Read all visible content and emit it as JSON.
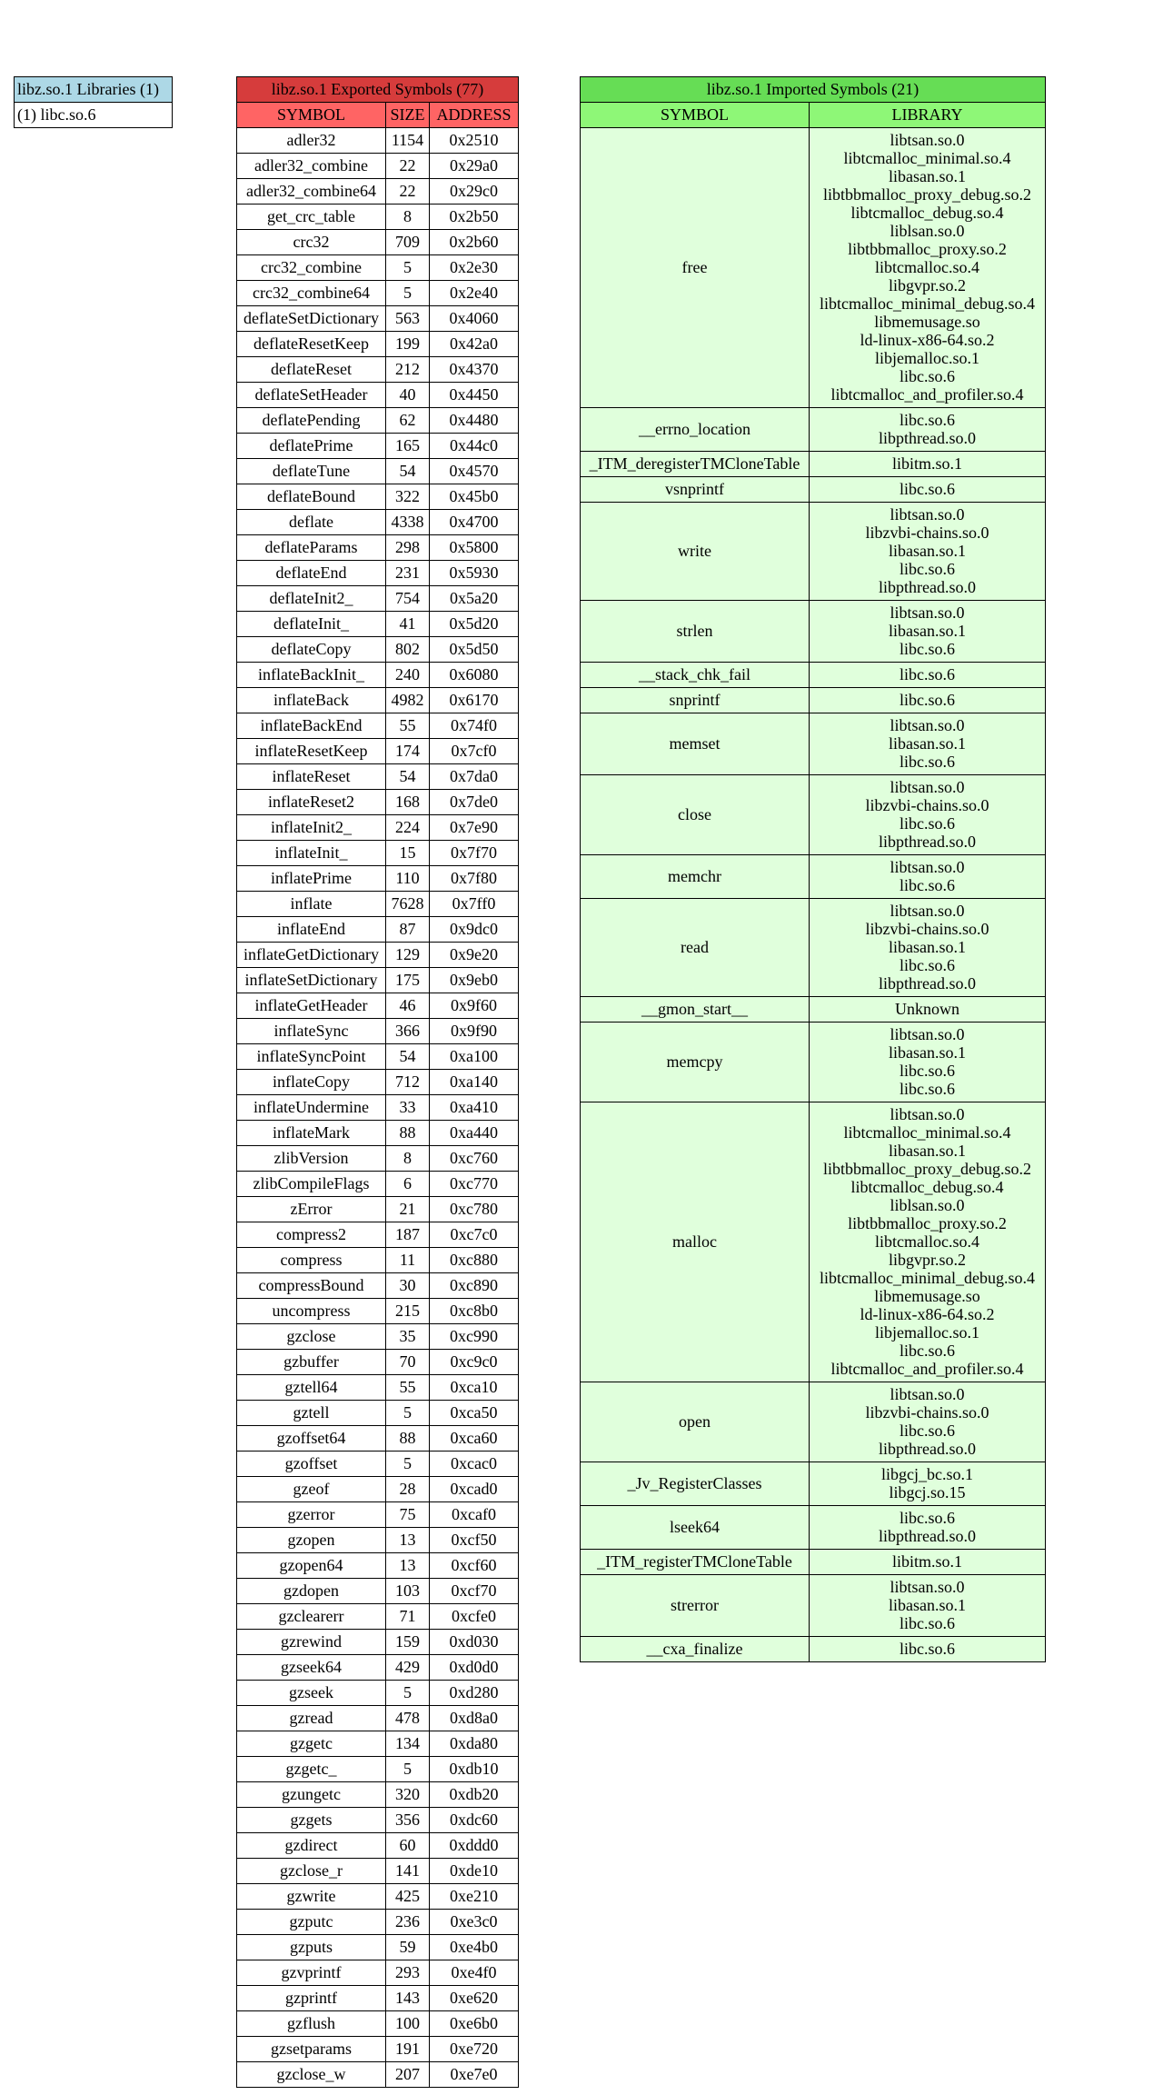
{
  "libraries": {
    "title": "libz.so.1 Libraries (1)",
    "items": [
      "(1) libc.so.6"
    ],
    "color": "#add8e6"
  },
  "exported": {
    "title": "libz.so.1 Exported Symbols (77)",
    "columns": [
      "SYMBOL",
      "SIZE",
      "ADDRESS"
    ],
    "title_color": "#d63c3c",
    "header_color": "#ff6464",
    "rows": [
      [
        "adler32",
        "1154",
        "0x2510"
      ],
      [
        "adler32_combine",
        "22",
        "0x29a0"
      ],
      [
        "adler32_combine64",
        "22",
        "0x29c0"
      ],
      [
        "get_crc_table",
        "8",
        "0x2b50"
      ],
      [
        "crc32",
        "709",
        "0x2b60"
      ],
      [
        "crc32_combine",
        "5",
        "0x2e30"
      ],
      [
        "crc32_combine64",
        "5",
        "0x2e40"
      ],
      [
        "deflateSetDictionary",
        "563",
        "0x4060"
      ],
      [
        "deflateResetKeep",
        "199",
        "0x42a0"
      ],
      [
        "deflateReset",
        "212",
        "0x4370"
      ],
      [
        "deflateSetHeader",
        "40",
        "0x4450"
      ],
      [
        "deflatePending",
        "62",
        "0x4480"
      ],
      [
        "deflatePrime",
        "165",
        "0x44c0"
      ],
      [
        "deflateTune",
        "54",
        "0x4570"
      ],
      [
        "deflateBound",
        "322",
        "0x45b0"
      ],
      [
        "deflate",
        "4338",
        "0x4700"
      ],
      [
        "deflateParams",
        "298",
        "0x5800"
      ],
      [
        "deflateEnd",
        "231",
        "0x5930"
      ],
      [
        "deflateInit2_",
        "754",
        "0x5a20"
      ],
      [
        "deflateInit_",
        "41",
        "0x5d20"
      ],
      [
        "deflateCopy",
        "802",
        "0x5d50"
      ],
      [
        "inflateBackInit_",
        "240",
        "0x6080"
      ],
      [
        "inflateBack",
        "4982",
        "0x6170"
      ],
      [
        "inflateBackEnd",
        "55",
        "0x74f0"
      ],
      [
        "inflateResetKeep",
        "174",
        "0x7cf0"
      ],
      [
        "inflateReset",
        "54",
        "0x7da0"
      ],
      [
        "inflateReset2",
        "168",
        "0x7de0"
      ],
      [
        "inflateInit2_",
        "224",
        "0x7e90"
      ],
      [
        "inflateInit_",
        "15",
        "0x7f70"
      ],
      [
        "inflatePrime",
        "110",
        "0x7f80"
      ],
      [
        "inflate",
        "7628",
        "0x7ff0"
      ],
      [
        "inflateEnd",
        "87",
        "0x9dc0"
      ],
      [
        "inflateGetDictionary",
        "129",
        "0x9e20"
      ],
      [
        "inflateSetDictionary",
        "175",
        "0x9eb0"
      ],
      [
        "inflateGetHeader",
        "46",
        "0x9f60"
      ],
      [
        "inflateSync",
        "366",
        "0x9f90"
      ],
      [
        "inflateSyncPoint",
        "54",
        "0xa100"
      ],
      [
        "inflateCopy",
        "712",
        "0xa140"
      ],
      [
        "inflateUndermine",
        "33",
        "0xa410"
      ],
      [
        "inflateMark",
        "88",
        "0xa440"
      ],
      [
        "zlibVersion",
        "8",
        "0xc760"
      ],
      [
        "zlibCompileFlags",
        "6",
        "0xc770"
      ],
      [
        "zError",
        "21",
        "0xc780"
      ],
      [
        "compress2",
        "187",
        "0xc7c0"
      ],
      [
        "compress",
        "11",
        "0xc880"
      ],
      [
        "compressBound",
        "30",
        "0xc890"
      ],
      [
        "uncompress",
        "215",
        "0xc8b0"
      ],
      [
        "gzclose",
        "35",
        "0xc990"
      ],
      [
        "gzbuffer",
        "70",
        "0xc9c0"
      ],
      [
        "gztell64",
        "55",
        "0xca10"
      ],
      [
        "gztell",
        "5",
        "0xca50"
      ],
      [
        "gzoffset64",
        "88",
        "0xca60"
      ],
      [
        "gzoffset",
        "5",
        "0xcac0"
      ],
      [
        "gzeof",
        "28",
        "0xcad0"
      ],
      [
        "gzerror",
        "75",
        "0xcaf0"
      ],
      [
        "gzopen",
        "13",
        "0xcf50"
      ],
      [
        "gzopen64",
        "13",
        "0xcf60"
      ],
      [
        "gzdopen",
        "103",
        "0xcf70"
      ],
      [
        "gzclearerr",
        "71",
        "0xcfe0"
      ],
      [
        "gzrewind",
        "159",
        "0xd030"
      ],
      [
        "gzseek64",
        "429",
        "0xd0d0"
      ],
      [
        "gzseek",
        "5",
        "0xd280"
      ],
      [
        "gzread",
        "478",
        "0xd8a0"
      ],
      [
        "gzgetc",
        "134",
        "0xda80"
      ],
      [
        "gzgetc_",
        "5",
        "0xdb10"
      ],
      [
        "gzungetc",
        "320",
        "0xdb20"
      ],
      [
        "gzgets",
        "356",
        "0xdc60"
      ],
      [
        "gzdirect",
        "60",
        "0xddd0"
      ],
      [
        "gzclose_r",
        "141",
        "0xde10"
      ],
      [
        "gzwrite",
        "425",
        "0xe210"
      ],
      [
        "gzputc",
        "236",
        "0xe3c0"
      ],
      [
        "gzputs",
        "59",
        "0xe4b0"
      ],
      [
        "gzvprintf",
        "293",
        "0xe4f0"
      ],
      [
        "gzprintf",
        "143",
        "0xe620"
      ],
      [
        "gzflush",
        "100",
        "0xe6b0"
      ],
      [
        "gzsetparams",
        "191",
        "0xe720"
      ],
      [
        "gzclose_w",
        "207",
        "0xe7e0"
      ]
    ]
  },
  "imported": {
    "title": "libz.so.1 Imported Symbols (21)",
    "columns": [
      "SYMBOL",
      "LIBRARY"
    ],
    "title_color": "#66dd55",
    "header_color": "#8ef777",
    "body_color": "#e0ffdc",
    "rows": [
      {
        "symbol": "free",
        "libraries": [
          "libtsan.so.0",
          "libtcmalloc_minimal.so.4",
          "libasan.so.1",
          "libtbbmalloc_proxy_debug.so.2",
          "libtcmalloc_debug.so.4",
          "liblsan.so.0",
          "libtbbmalloc_proxy.so.2",
          "libtcmalloc.so.4",
          "libgvpr.so.2",
          "libtcmalloc_minimal_debug.so.4",
          "libmemusage.so",
          "ld-linux-x86-64.so.2",
          "libjemalloc.so.1",
          "libc.so.6",
          "libtcmalloc_and_profiler.so.4"
        ]
      },
      {
        "symbol": "__errno_location",
        "libraries": [
          "libc.so.6",
          "libpthread.so.0"
        ]
      },
      {
        "symbol": "_ITM_deregisterTMCloneTable",
        "libraries": [
          "libitm.so.1"
        ]
      },
      {
        "symbol": "vsnprintf",
        "libraries": [
          "libc.so.6"
        ]
      },
      {
        "symbol": "write",
        "libraries": [
          "libtsan.so.0",
          "libzvbi-chains.so.0",
          "libasan.so.1",
          "libc.so.6",
          "libpthread.so.0"
        ]
      },
      {
        "symbol": "strlen",
        "libraries": [
          "libtsan.so.0",
          "libasan.so.1",
          "libc.so.6"
        ]
      },
      {
        "symbol": "__stack_chk_fail",
        "libraries": [
          "libc.so.6"
        ]
      },
      {
        "symbol": "snprintf",
        "libraries": [
          "libc.so.6"
        ]
      },
      {
        "symbol": "memset",
        "libraries": [
          "libtsan.so.0",
          "libasan.so.1",
          "libc.so.6"
        ]
      },
      {
        "symbol": "close",
        "libraries": [
          "libtsan.so.0",
          "libzvbi-chains.so.0",
          "libc.so.6",
          "libpthread.so.0"
        ]
      },
      {
        "symbol": "memchr",
        "libraries": [
          "libtsan.so.0",
          "libc.so.6"
        ]
      },
      {
        "symbol": "read",
        "libraries": [
          "libtsan.so.0",
          "libzvbi-chains.so.0",
          "libasan.so.1",
          "libc.so.6",
          "libpthread.so.0"
        ]
      },
      {
        "symbol": "__gmon_start__",
        "libraries": [
          "Unknown"
        ]
      },
      {
        "symbol": "memcpy",
        "libraries": [
          "libtsan.so.0",
          "libasan.so.1",
          "libc.so.6",
          "libc.so.6"
        ]
      },
      {
        "symbol": "malloc",
        "libraries": [
          "libtsan.so.0",
          "libtcmalloc_minimal.so.4",
          "libasan.so.1",
          "libtbbmalloc_proxy_debug.so.2",
          "libtcmalloc_debug.so.4",
          "liblsan.so.0",
          "libtbbmalloc_proxy.so.2",
          "libtcmalloc.so.4",
          "libgvpr.so.2",
          "libtcmalloc_minimal_debug.so.4",
          "libmemusage.so",
          "ld-linux-x86-64.so.2",
          "libjemalloc.so.1",
          "libc.so.6",
          "libtcmalloc_and_profiler.so.4"
        ]
      },
      {
        "symbol": "open",
        "libraries": [
          "libtsan.so.0",
          "libzvbi-chains.so.0",
          "libc.so.6",
          "libpthread.so.0"
        ]
      },
      {
        "symbol": "_Jv_RegisterClasses",
        "libraries": [
          "libgcj_bc.so.1",
          "libgcj.so.15"
        ]
      },
      {
        "symbol": "lseek64",
        "libraries": [
          "libc.so.6",
          "libpthread.so.0"
        ]
      },
      {
        "symbol": "_ITM_registerTMCloneTable",
        "libraries": [
          "libitm.so.1"
        ]
      },
      {
        "symbol": "strerror",
        "libraries": [
          "libtsan.so.0",
          "libasan.so.1",
          "libc.so.6"
        ]
      },
      {
        "symbol": "__cxa_finalize",
        "libraries": [
          "libc.so.6"
        ]
      }
    ]
  }
}
